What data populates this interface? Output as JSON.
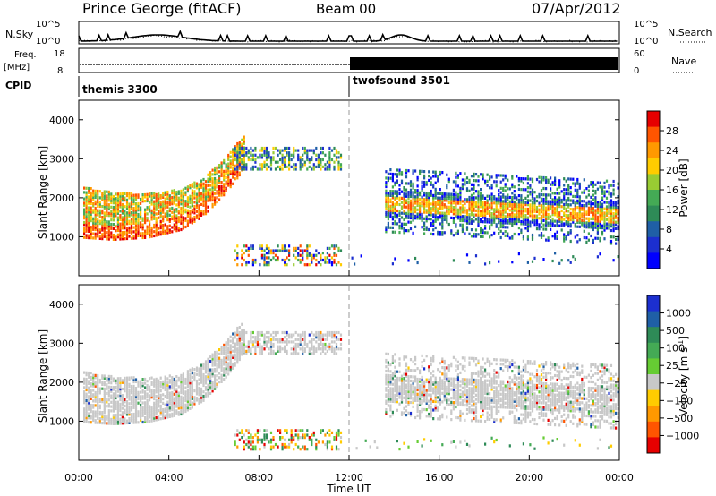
{
  "header": {
    "title": "Prince George (fitACF)",
    "beam": "Beam 00",
    "date": "07/Apr/2012"
  },
  "top_panels": {
    "nsky_label": "N.Sky",
    "nsky_ticks": [
      "10^5",
      "10^0"
    ],
    "nsearch_label": "N.Search",
    "nsearch_ticks": [
      "10^5",
      "10^0"
    ],
    "freq_label": "Freq.",
    "freq_unit": "[MHz]",
    "freq_ticks": [
      "18",
      "8"
    ],
    "nave_label": "Nave",
    "nave_ticks": [
      "60",
      "0"
    ],
    "cpid_label": "CPID",
    "cpid_segments": [
      {
        "name": "themis 3300",
        "start": 0,
        "end": 12
      },
      {
        "name": "twofsound 3501",
        "start": 12,
        "end": 24
      }
    ]
  },
  "chart_data": [
    {
      "type": "heatmap",
      "title": "Power",
      "ylabel": "Slant Range [km]",
      "xlabel": "Time UT",
      "ylim": [
        0,
        4500
      ],
      "xlim": [
        0,
        24
      ],
      "y_ticks": [
        1000,
        2000,
        3000,
        4000
      ],
      "x_ticks": [
        "00:00",
        "04:00",
        "08:00",
        "12:00",
        "16:00",
        "20:00",
        "00:00"
      ],
      "colorbar": {
        "label": "Power [dB]",
        "ticks": [
          "28",
          "24",
          "20",
          "16",
          "12",
          "8",
          "4"
        ],
        "colors": [
          "#e60000",
          "#ff5500",
          "#ff9900",
          "#ffcc00",
          "#99cc33",
          "#44aa55",
          "#2e8b57",
          "#1f5fa6",
          "#1c2fcf",
          "#0000ff"
        ]
      },
      "features": [
        {
          "name": "near-range arc",
          "t": [
            0.2,
            1.5,
            3.0,
            4.5,
            5.5,
            6.5,
            7.3
          ],
          "range_km": [
            1150,
            1100,
            1150,
            1350,
            1700,
            2300,
            2900
          ]
        },
        {
          "name": "far-range band",
          "t": [
            7.5,
            11.5
          ],
          "range_km": [
            3000,
            3000
          ]
        },
        {
          "name": "evening band",
          "t": [
            13.5,
            24
          ],
          "range_km": [
            1700,
            1400
          ]
        }
      ]
    },
    {
      "type": "heatmap",
      "title": "Velocity",
      "ylabel": "Slant Range [km]",
      "xlabel": "Time UT",
      "ylim": [
        0,
        4500
      ],
      "xlim": [
        0,
        24
      ],
      "y_ticks": [
        1000,
        2000,
        3000,
        4000
      ],
      "x_ticks": [
        "00:00",
        "04:00",
        "08:00",
        "12:00",
        "16:00",
        "20:00",
        "00:00"
      ],
      "colorbar": {
        "label": "Velocity",
        "unit_prefix": "[m s",
        "unit_exp": "-1",
        "unit_suffix": "]",
        "ticks": [
          "1000",
          "500",
          "100",
          "25",
          "−25",
          "−100",
          "−500",
          "−1000"
        ],
        "colors": [
          "#1c2fcf",
          "#1f5fa6",
          "#2e8b57",
          "#44aa55",
          "#66cc33",
          "#c8c8c8",
          "#ffcc00",
          "#ff9900",
          "#ff5500",
          "#e60000"
        ]
      }
    }
  ],
  "x_axis": {
    "title": "Time UT",
    "ticks": [
      "00:00",
      "04:00",
      "08:00",
      "12:00",
      "16:00",
      "20:00",
      "00:00"
    ]
  }
}
